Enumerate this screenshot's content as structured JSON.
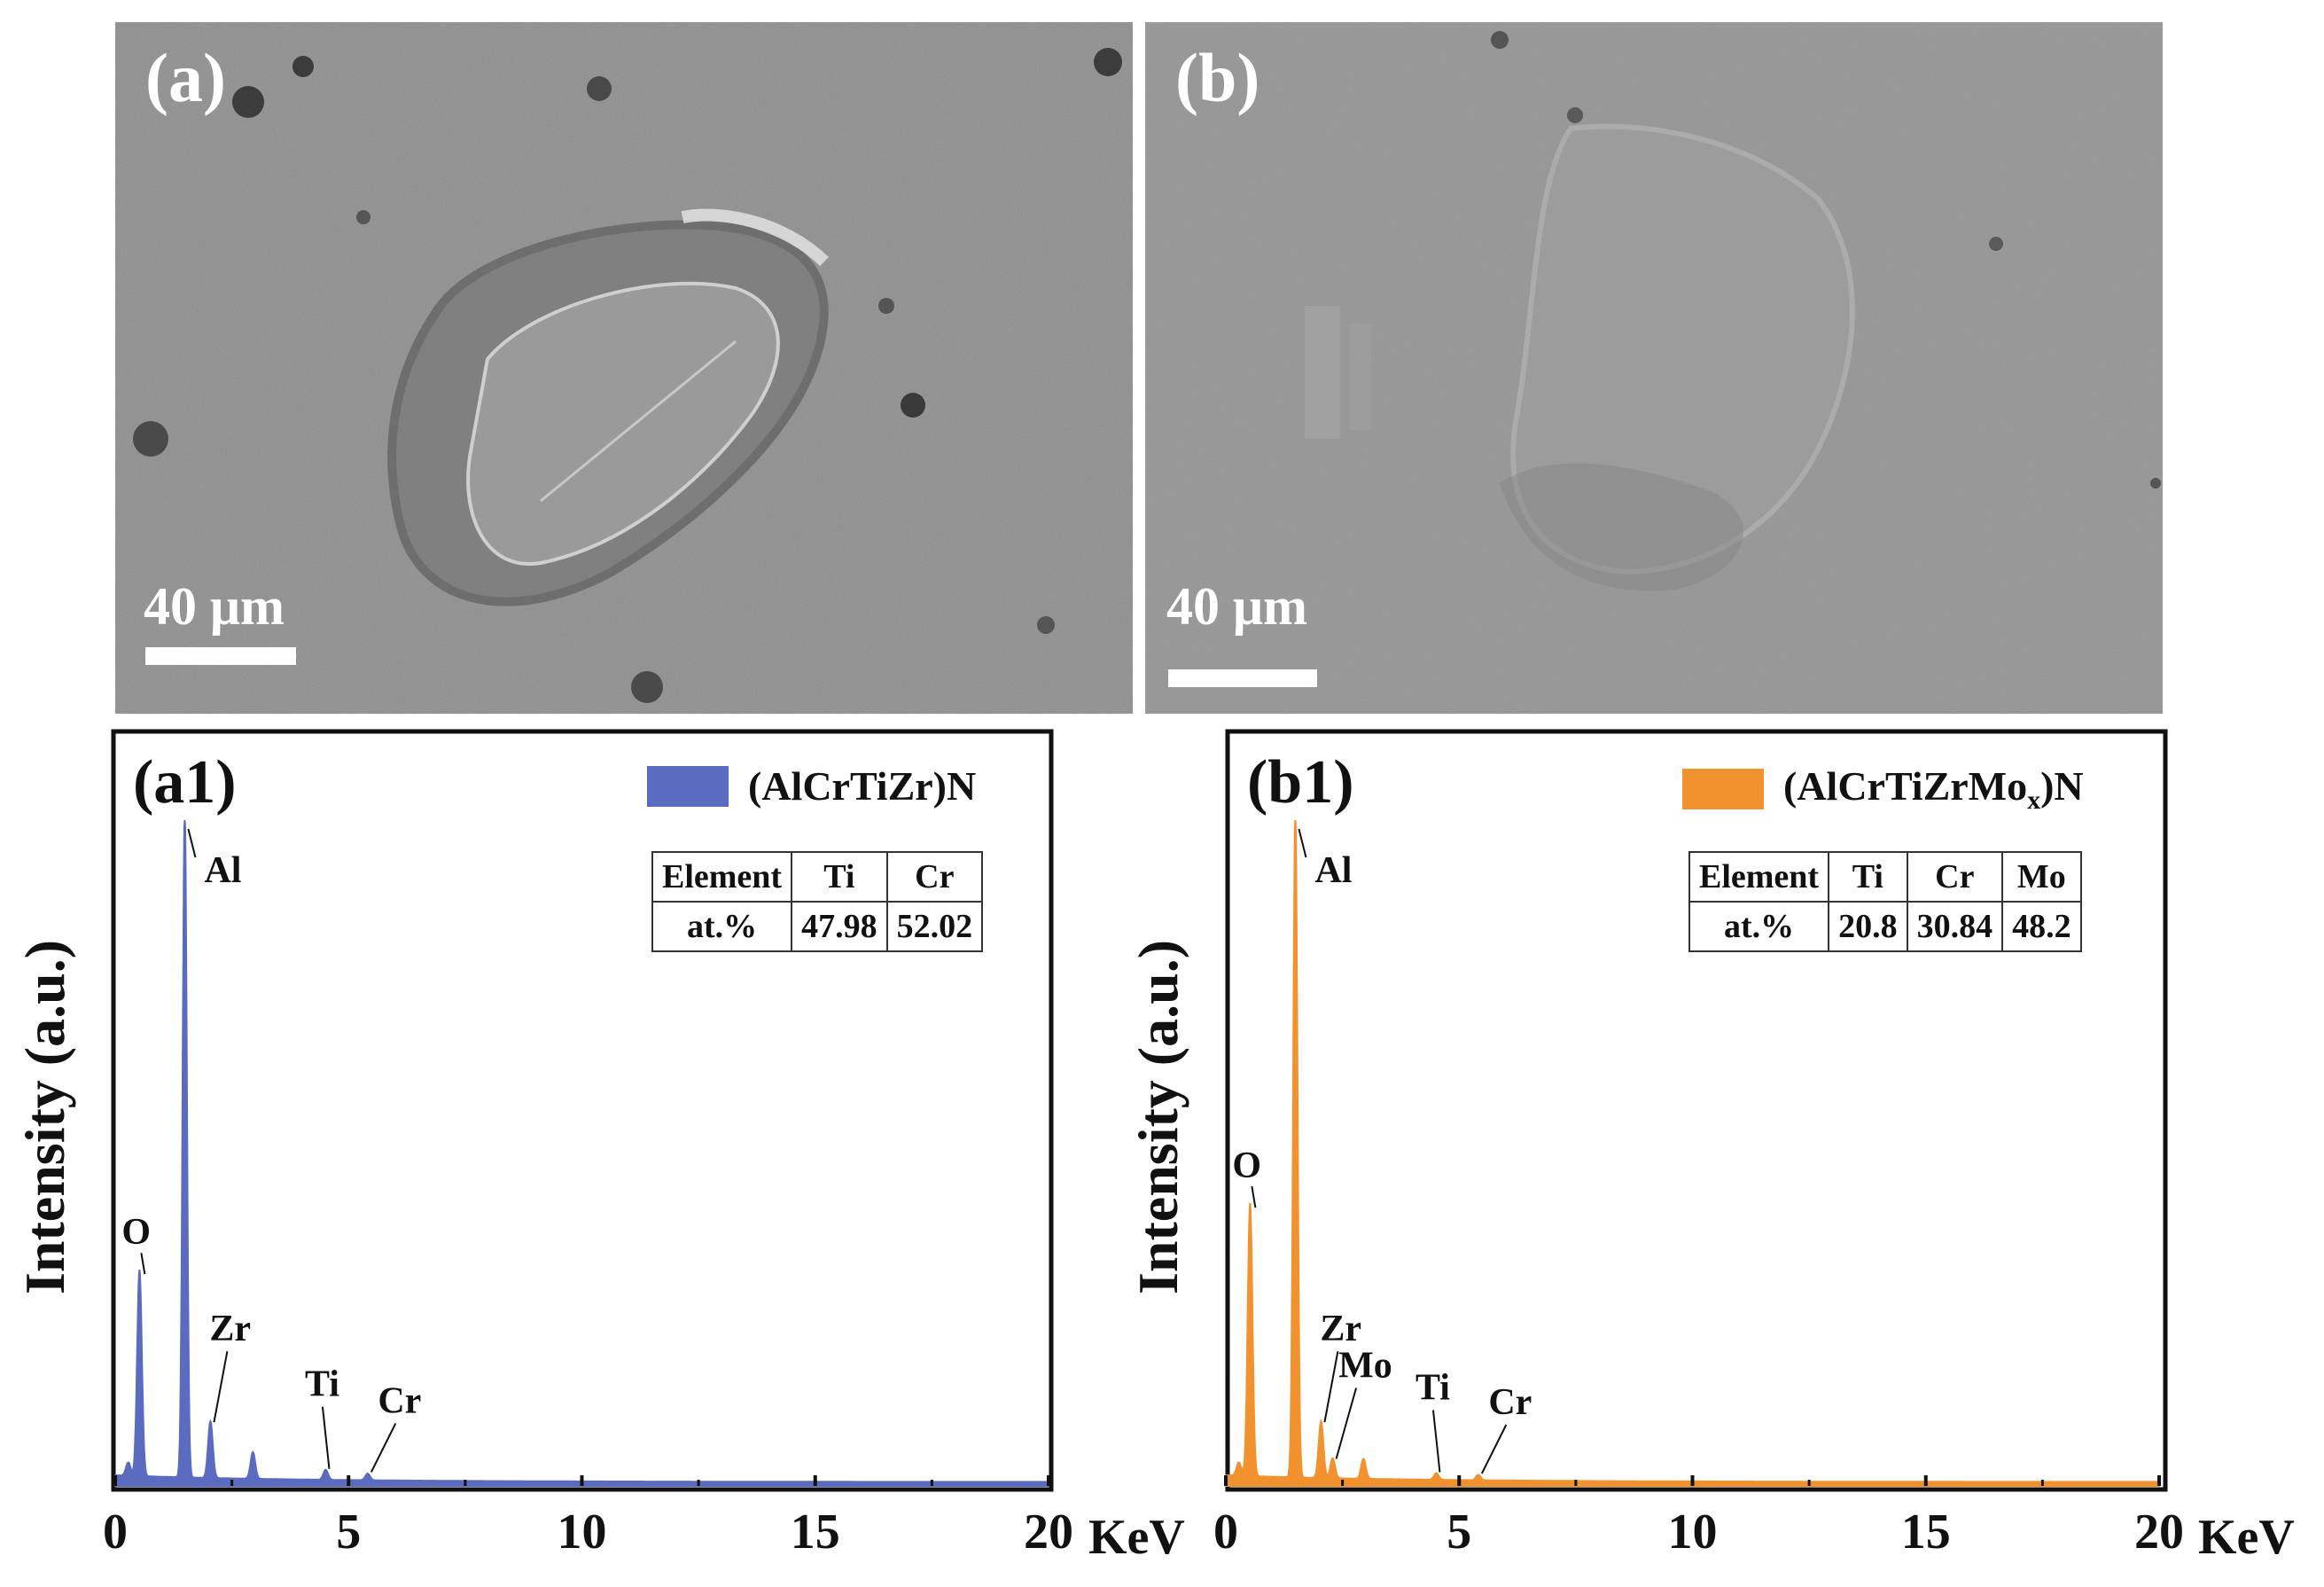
{
  "panels": {
    "a": {
      "label": "(a)",
      "scale": "40 μm"
    },
    "b": {
      "label": "(b)",
      "scale": "40 μm"
    }
  },
  "chart_data": [
    {
      "type": "area",
      "panel_label": "(a1)",
      "legend": "(AlCrTiZr)N",
      "color": "#5b6bc0",
      "ylabel": "Intensity (a.u.)",
      "xunit": "KeV",
      "xlim": [
        0,
        20
      ],
      "xticks": [
        "0",
        "5",
        "10",
        "15",
        "20"
      ],
      "peaks": [
        {
          "element": "O",
          "x": 0.52,
          "y": 0.31
        },
        {
          "element": "Al",
          "x": 1.49,
          "y": 1.0
        },
        {
          "element": "Zr",
          "x": 2.04,
          "y": 0.085
        },
        {
          "element": "Ti",
          "x": 4.51,
          "y": 0.015
        },
        {
          "element": "Cr",
          "x": 5.41,
          "y": 0.01
        }
      ],
      "minor_peaks": [
        {
          "x": 2.95,
          "y": 0.04
        },
        {
          "x": 0.28,
          "y": 0.02
        }
      ],
      "table": {
        "headers": [
          "Element",
          "Ti",
          "Cr"
        ],
        "row_label": "at.%",
        "values": [
          "47.98",
          "52.02"
        ]
      }
    },
    {
      "type": "area",
      "panel_label": "(b1)",
      "legend_main": "(AlCrTiZrMo",
      "legend_sub": "x",
      "legend_end": ")N",
      "color": "#f2922e",
      "ylabel": "Intensity (a.u.)",
      "xunit": "KeV",
      "xlim": [
        0,
        20
      ],
      "xticks": [
        "0",
        "5",
        "10",
        "15",
        "20"
      ],
      "peaks": [
        {
          "element": "O",
          "x": 0.52,
          "y": 0.41
        },
        {
          "element": "Al",
          "x": 1.49,
          "y": 1.0
        },
        {
          "element": "Zr",
          "x": 2.04,
          "y": 0.085
        },
        {
          "element": "Mo",
          "x": 2.29,
          "y": 0.03
        },
        {
          "element": "Ti",
          "x": 4.51,
          "y": 0.01
        },
        {
          "element": "Cr",
          "x": 5.41,
          "y": 0.008
        }
      ],
      "minor_peaks": [
        {
          "x": 2.95,
          "y": 0.03
        },
        {
          "x": 0.28,
          "y": 0.02
        }
      ],
      "table": {
        "headers": [
          "Element",
          "Ti",
          "Cr",
          "Mo"
        ],
        "row_label": "at.%",
        "values": [
          "20.8",
          "30.84",
          "48.2"
        ]
      }
    }
  ]
}
